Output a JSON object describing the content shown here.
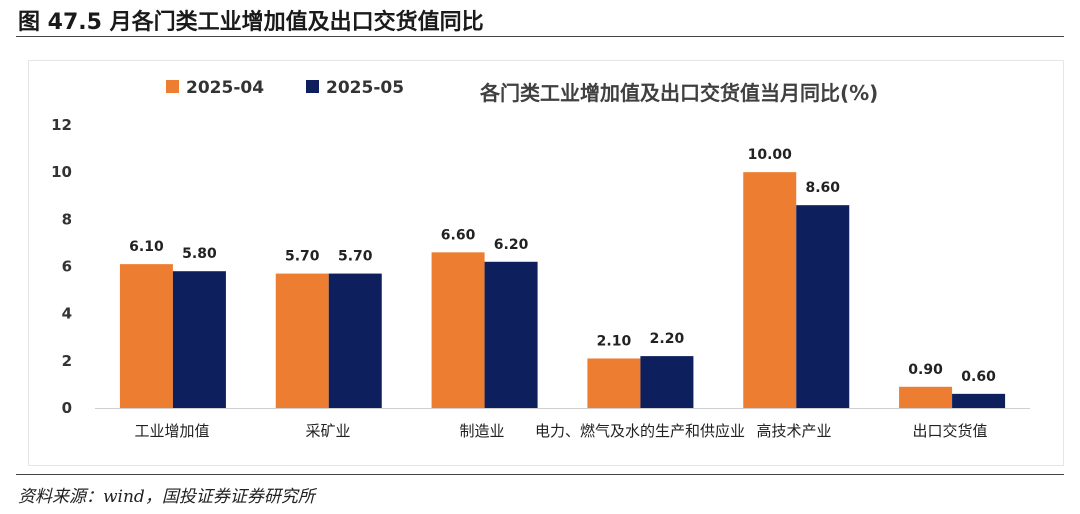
{
  "figure": {
    "title": "图 47.5 月各门类工业增加值及出口交货值同比",
    "source": "资料来源：wind，国投证券证券研究所"
  },
  "chart_data": {
    "type": "bar",
    "title": "各门类工业增加值及出口交货值当月同比(%)",
    "categories": [
      "工业增加值",
      "采矿业",
      "制造业",
      "电力、燃气及水的生产和供应业",
      "高技术产业",
      "出口交货值"
    ],
    "series": [
      {
        "name": "2025-04",
        "values": [
          6.1,
          5.7,
          6.6,
          2.1,
          10.0,
          0.9
        ],
        "color": "#ED7D31"
      },
      {
        "name": "2025-05",
        "values": [
          5.8,
          5.7,
          6.2,
          2.2,
          8.6,
          0.6
        ],
        "color": "#0D1F5C"
      }
    ],
    "ylim": [
      0,
      12
    ],
    "yticks": [
      0,
      2,
      4,
      6,
      8,
      10,
      12
    ],
    "data_label_decimals": 2,
    "legend_position": "top-left",
    "grid": false
  }
}
